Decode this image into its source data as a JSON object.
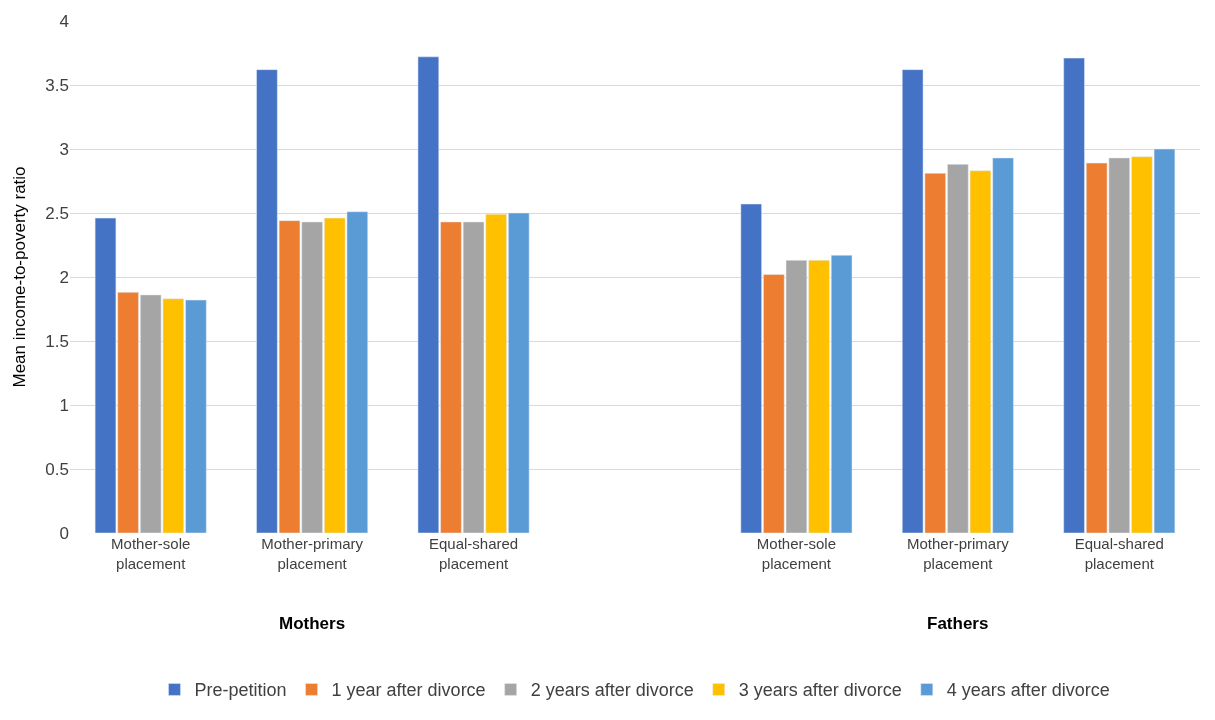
{
  "chart_data": {
    "type": "bar",
    "ylabel": "Mean income-to-poverty ratio",
    "categories": [
      "Mother-sole placement",
      "Mother-primary placement",
      "Equal-shared placement",
      null,
      "Mother-sole placement",
      "Mother-primary placement",
      "Equal-shared placement"
    ],
    "annotations": [
      "Mothers",
      "Fathers"
    ],
    "series": [
      {
        "name": "Pre-petition",
        "color": "#4472c4",
        "values": [
          2.46,
          3.62,
          3.72,
          null,
          2.57,
          3.62,
          3.71
        ]
      },
      {
        "name": "1 year after divorce",
        "color": "#ed7d31",
        "values": [
          1.88,
          2.44,
          2.43,
          null,
          2.02,
          2.81,
          2.89
        ]
      },
      {
        "name": "2 years after divorce",
        "color": "#a5a5a5",
        "values": [
          1.86,
          2.43,
          2.43,
          null,
          2.13,
          2.88,
          2.93
        ]
      },
      {
        "name": "3 years after divorce",
        "color": "#ffc000",
        "values": [
          1.83,
          2.46,
          2.49,
          null,
          2.13,
          2.83,
          2.94
        ]
      },
      {
        "name": "4 years after divorce",
        "color": "#5b9bd5",
        "values": [
          1.82,
          2.51,
          2.5,
          null,
          2.17,
          2.93,
          3.0
        ]
      }
    ],
    "ylim": [
      0,
      4
    ],
    "yticks": [
      0,
      0.5,
      1,
      1.5,
      2,
      2.5,
      3,
      3.5,
      4
    ],
    "grid": "y",
    "legend": "bottom"
  }
}
